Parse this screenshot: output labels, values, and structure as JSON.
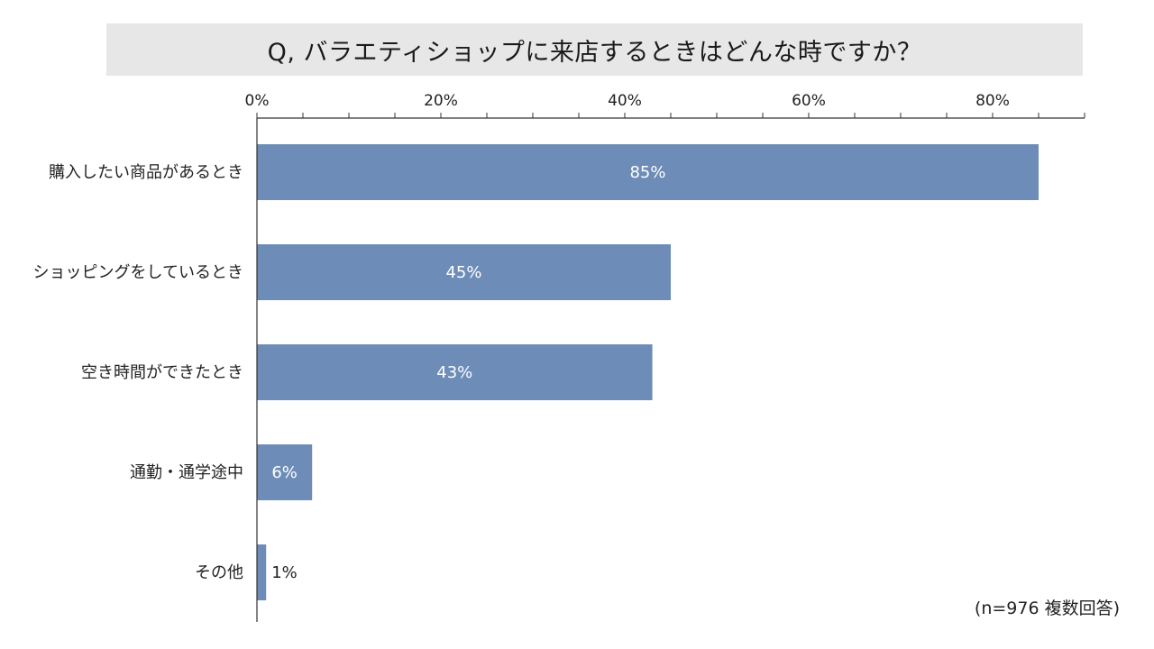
{
  "title": "Q, バラエティショップに来店するときはどんな時ですか？",
  "note": "(n=976 複数回答)",
  "colors": {
    "bar": "#6d8db8",
    "label_inside": "#ffffff",
    "label_outside": "#222222",
    "title_bg": "#e7e7e7"
  },
  "chart_data": {
    "type": "bar",
    "orientation": "horizontal",
    "categories": [
      "購入したい商品があるとき",
      "ショッピングをしているとき",
      "空き時間ができたとき",
      "通勤・通学途中",
      "その他"
    ],
    "values": [
      85,
      45,
      43,
      6,
      1
    ],
    "value_labels": [
      "85%",
      "45%",
      "43%",
      "6%",
      "1%"
    ],
    "xlim": [
      0,
      90
    ],
    "xticks": [
      0,
      20,
      40,
      60,
      80
    ],
    "xtick_labels": [
      "0%",
      "20%",
      "40%",
      "60%",
      "80%"
    ],
    "axis_position": "top",
    "grid": false
  }
}
